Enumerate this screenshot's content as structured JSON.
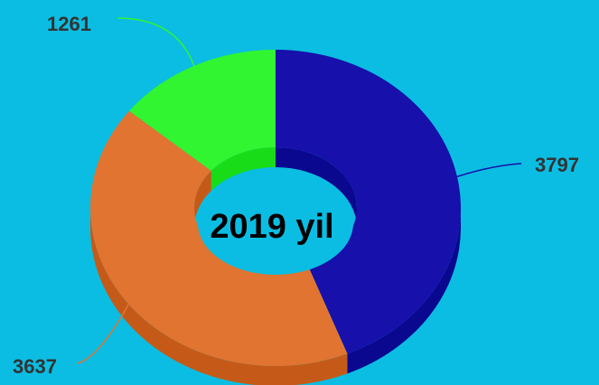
{
  "chart_data": {
    "type": "pie",
    "variant": "3d-donut",
    "title": "",
    "center_label": "2019 yil",
    "start_at": "top",
    "direction": "clockwise",
    "slices": [
      {
        "label": "3797",
        "value": 3797,
        "color": "#1710ab",
        "side_color": "#0b0890"
      },
      {
        "label": "3637",
        "value": 3637,
        "color": "#e07430",
        "side_color": "#c55a18"
      },
      {
        "label": "1261",
        "value": 1261,
        "color": "#30f530",
        "side_color": "#18dc18"
      }
    ],
    "legend": "none",
    "background": "#0bbde2"
  }
}
